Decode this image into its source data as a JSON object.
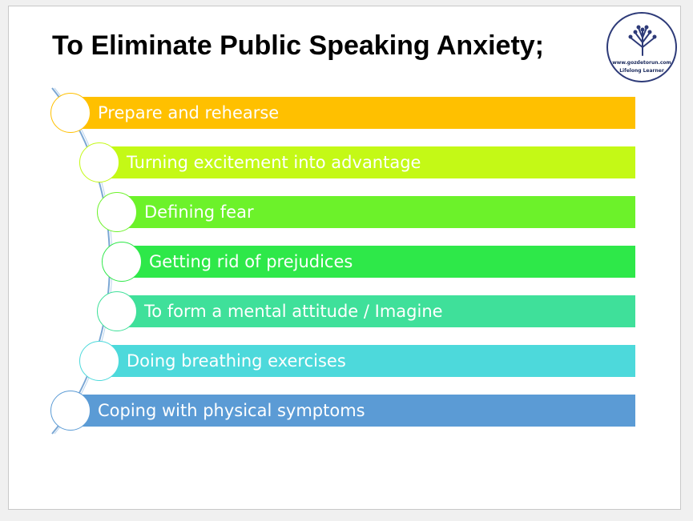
{
  "slide": {
    "title": "To Eliminate Public Speaking Anxiety;"
  },
  "logo": {
    "site": "www.gozdetorun.com",
    "tagline": "Lifelong Learner",
    "icon": "tree-icon",
    "color": "#2d3a78"
  },
  "steps": [
    {
      "label": "Prepare and rehearse",
      "color": "#FFC000"
    },
    {
      "label": "Turning excitement into advantage",
      "color": "#C4F916"
    },
    {
      "label": "Defining fear",
      "color": "#6CF22A"
    },
    {
      "label": "Getting rid of prejudices",
      "color": "#2EE849"
    },
    {
      "label": "To form a mental attitude / Imagine",
      "color": "#3FE09A"
    },
    {
      "label": "Doing breathing exercises",
      "color": "#4DD9DB"
    },
    {
      "label": "Coping with physical symptoms",
      "color": "#5B9BD5"
    }
  ]
}
